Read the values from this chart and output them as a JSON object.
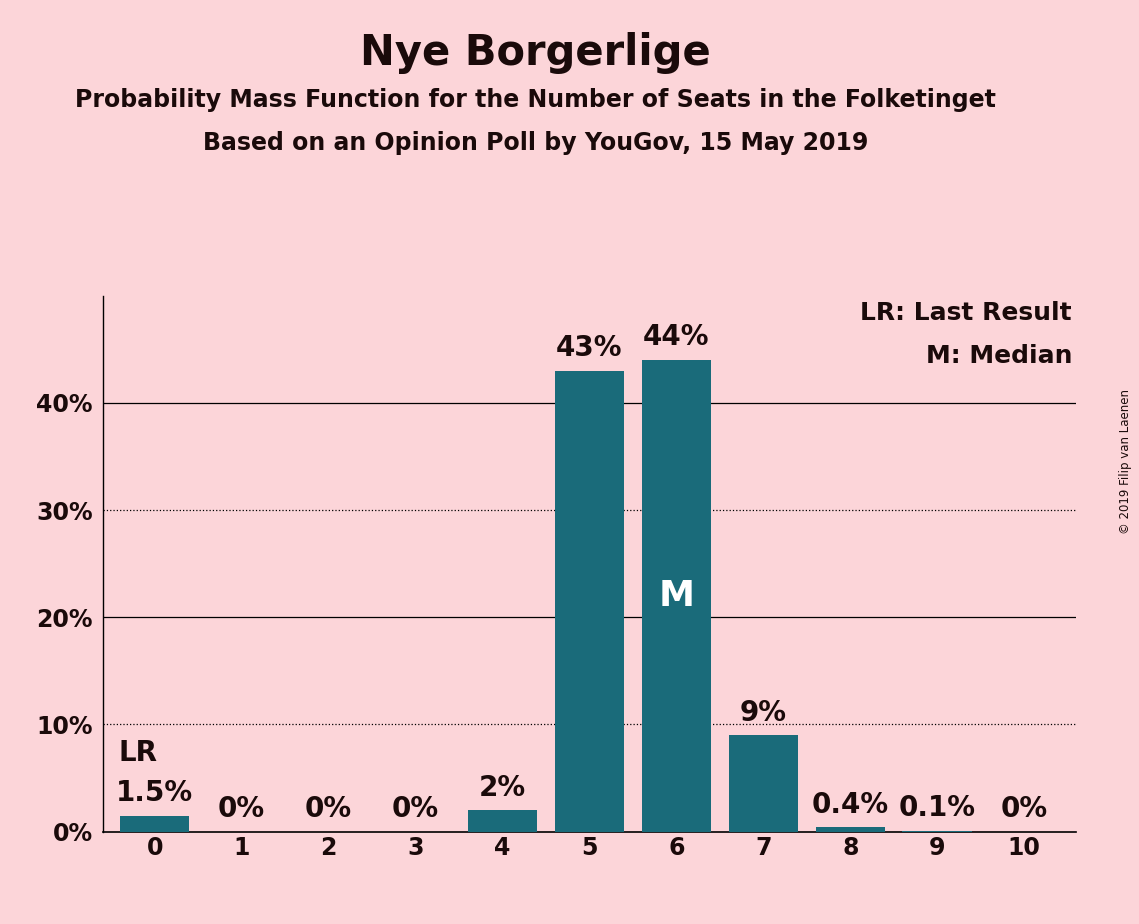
{
  "title": "Nye Borgerlige",
  "subtitle1": "Probability Mass Function for the Number of Seats in the Folketinget",
  "subtitle2": "Based on an Opinion Poll by YouGov, 15 May 2019",
  "copyright": "© 2019 Filip van Laenen",
  "categories": [
    0,
    1,
    2,
    3,
    4,
    5,
    6,
    7,
    8,
    9,
    10
  ],
  "values": [
    1.5,
    0,
    0,
    0,
    2,
    43,
    44,
    9,
    0.4,
    0.1,
    0
  ],
  "labels": [
    "1.5%",
    "0%",
    "0%",
    "0%",
    "2%",
    "43%",
    "44%",
    "9%",
    "0.4%",
    "0.1%",
    "0%"
  ],
  "bar_color": "#1a6b7a",
  "background_color": "#fcd5d9",
  "text_color": "#1a0a0a",
  "median_bar": 6,
  "lr_bar": 0,
  "median_label": "M",
  "lr_label": "LR",
  "legend_lr": "LR: Last Result",
  "legend_m": "M: Median",
  "ylabel_ticks": [
    "0%",
    "10%",
    "20%",
    "30%",
    "40%"
  ],
  "yticks": [
    0,
    10,
    20,
    30,
    40
  ],
  "ylim": [
    0,
    50
  ],
  "solid_gridlines": [
    20,
    40
  ],
  "dotted_gridlines": [
    10,
    30
  ],
  "title_fontsize": 30,
  "subtitle_fontsize": 17,
  "bar_label_fontsize": 20,
  "tick_fontsize": 17,
  "legend_fontsize": 18,
  "median_fontsize": 26
}
